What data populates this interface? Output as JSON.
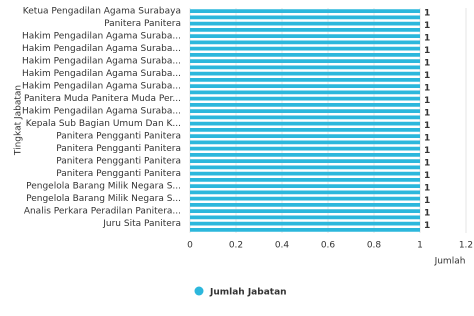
{
  "chart_data": {
    "type": "hbar",
    "x_label": "Jumlah",
    "y_label": "Tingkat Jabatan",
    "categories": [
      "Ketua Pengadilan Agama Surabaya",
      null,
      "Panitera Panitera",
      null,
      "Hakim Pengadilan Agama Suraba...",
      null,
      "Hakim Pengadilan Agama Suraba...",
      null,
      "Hakim Pengadilan Agama Suraba...",
      null,
      "Hakim Pengadilan Agama Suraba...",
      null,
      "Hakim Pengadilan Agama Suraba...",
      null,
      "Panitera Muda Panitera Muda Per...",
      null,
      "Hakim Pengadilan Agama Suraba...",
      null,
      "Kepala Sub Bagian Umum Dan K...",
      null,
      "Panitera Pengganti Panitera",
      null,
      "Panitera Pengganti Panitera",
      null,
      "Panitera Pengganti Panitera",
      null,
      "Panitera Pengganti Panitera",
      null,
      "Pengelola Barang Milik Negara S...",
      null,
      "Pengelola Barang Milik Negara S...",
      null,
      "Analis Perkara Peradilan Panitera...",
      null,
      "Juru Sita Panitera",
      null
    ],
    "series": [
      {
        "name": "Jumlah Jabatan",
        "color": "#2cb7dc",
        "values": [
          1,
          1,
          1,
          1,
          1,
          1,
          1,
          1,
          1,
          1,
          1,
          1,
          1,
          1,
          1,
          1,
          1,
          1,
          1,
          1,
          1,
          1,
          1,
          1,
          1,
          1,
          1,
          1,
          1,
          1,
          1,
          1,
          1,
          1,
          1,
          1
        ]
      }
    ],
    "xlim": [
      0,
      1.2
    ],
    "xticks": [
      0,
      0.2,
      0.4,
      0.6,
      0.8,
      1,
      1.2
    ],
    "grid": true
  }
}
